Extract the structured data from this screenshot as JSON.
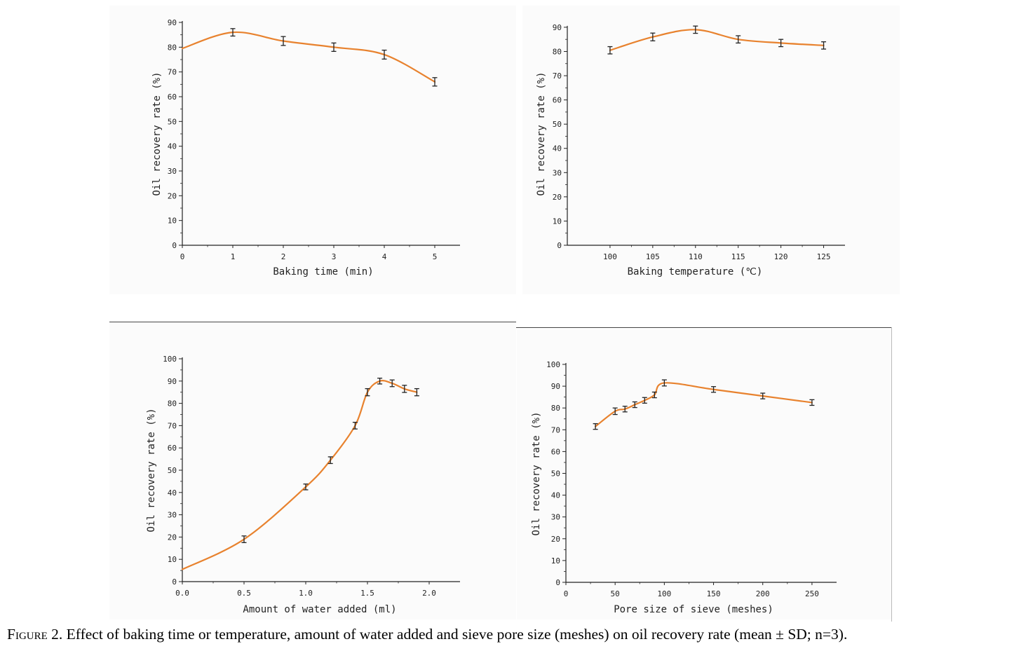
{
  "caption": {
    "label": "Figure 2.",
    "text": "Effect of baking time or temperature, amount of water added and sieve pore size (meshes) on oil recovery rate (mean ± SD; n=3)."
  },
  "colors": {
    "line": "#e8822e",
    "axis": "#222222",
    "errorbar": "#222222"
  },
  "chart_data": [
    {
      "type": "line",
      "xlabel": "Baking time (min)",
      "ylabel": "Oil recovery rate (%)",
      "xlim": [
        0,
        5.5
      ],
      "ylim": [
        0,
        90
      ],
      "xticks": [
        0,
        1,
        2,
        3,
        4,
        5
      ],
      "xtick_labels": [
        "0",
        "1",
        "2",
        "3",
        "4",
        "5"
      ],
      "yticks": [
        0,
        10,
        20,
        30,
        40,
        50,
        60,
        70,
        80,
        90
      ],
      "ytick_labels": [
        "0",
        "10",
        "20",
        "30",
        "40",
        "50",
        "60",
        "70",
        "80",
        "90"
      ],
      "x": [
        0,
        1,
        2,
        3,
        4,
        5
      ],
      "y": [
        79.5,
        86,
        82.5,
        80,
        77,
        66
      ],
      "err": [
        0,
        1.5,
        1.8,
        1.7,
        1.8,
        1.7
      ]
    },
    {
      "type": "line",
      "xlabel": "Baking temperature (℃)",
      "ylabel": "Oil recovery rate (%)",
      "xlim": [
        95,
        127.5
      ],
      "ylim": [
        0,
        92
      ],
      "xticks": [
        100,
        105,
        110,
        115,
        120,
        125
      ],
      "xtick_labels": [
        "100",
        "105",
        "110",
        "115",
        "120",
        "125"
      ],
      "yticks": [
        0,
        10,
        20,
        30,
        40,
        50,
        60,
        70,
        80,
        90
      ],
      "ytick_labels": [
        "0",
        "10",
        "20",
        "30",
        "40",
        "50",
        "60",
        "70",
        "80",
        "90"
      ],
      "x": [
        100,
        105,
        110,
        115,
        120,
        125
      ],
      "y": [
        80.5,
        86,
        89,
        85,
        83.5,
        82.5
      ],
      "err": [
        1.5,
        1.6,
        1.5,
        1.5,
        1.5,
        1.5
      ]
    },
    {
      "type": "line",
      "xlabel": "Amount of water added (ml)",
      "ylabel": "Oil recovery rate (%)",
      "xlim": [
        0,
        2.25
      ],
      "ylim": [
        0,
        100
      ],
      "xticks": [
        0,
        0.5,
        1.0,
        1.5,
        2.0
      ],
      "xtick_labels": [
        "0.0",
        "0.5",
        "1.0",
        "1.5",
        "2.0"
      ],
      "yticks": [
        0,
        10,
        20,
        30,
        40,
        50,
        60,
        70,
        80,
        90,
        100
      ],
      "ytick_labels": [
        "0",
        "10",
        "20",
        "30",
        "40",
        "50",
        "60",
        "70",
        "80",
        "90",
        "100"
      ],
      "x": [
        0,
        0.5,
        1.0,
        1.2,
        1.4,
        1.5,
        1.6,
        1.7,
        1.8,
        1.9
      ],
      "y": [
        5.5,
        19,
        42.5,
        54.5,
        70,
        85,
        90,
        89,
        86.5,
        85
      ],
      "err": [
        0,
        1.5,
        1.3,
        1.5,
        1.5,
        1.6,
        1.3,
        1.5,
        1.6,
        1.6
      ]
    },
    {
      "type": "line",
      "xlabel": "Pore size of sieve (meshes)",
      "ylabel": "Oil recovery rate (%)",
      "xlim": [
        0,
        275
      ],
      "ylim": [
        0,
        100
      ],
      "xticks": [
        0,
        50,
        100,
        150,
        200,
        250
      ],
      "xtick_labels": [
        "0",
        "50",
        "100",
        "150",
        "200",
        "250"
      ],
      "yticks": [
        0,
        10,
        20,
        30,
        40,
        50,
        60,
        70,
        80,
        90,
        100
      ],
      "ytick_labels": [
        "0",
        "10",
        "20",
        "30",
        "40",
        "50",
        "60",
        "70",
        "80",
        "90",
        "100"
      ],
      "x": [
        30,
        50,
        60,
        70,
        80,
        90,
        100,
        150,
        200,
        250
      ],
      "y": [
        71.5,
        78.5,
        79.5,
        81.5,
        83.5,
        86,
        91.5,
        88.5,
        85.5,
        82.5
      ],
      "err": [
        1.3,
        1.5,
        1.3,
        1.3,
        1.3,
        1.3,
        1.4,
        1.3,
        1.3,
        1.3
      ]
    }
  ]
}
